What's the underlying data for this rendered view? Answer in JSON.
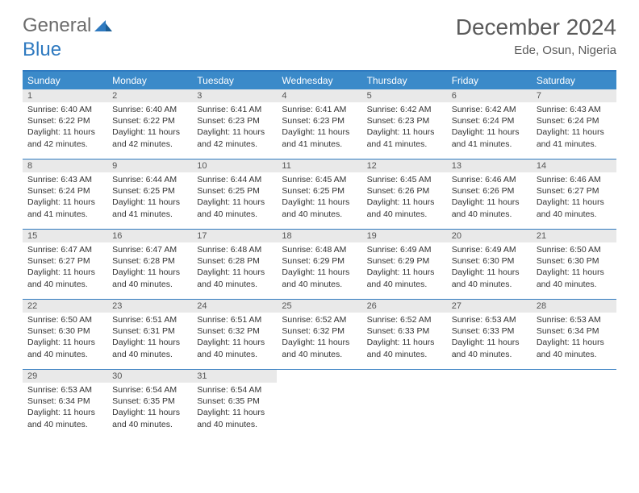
{
  "brand": {
    "first": "General",
    "second": "Blue",
    "tri_color": "#2f7ac0"
  },
  "title": "December 2024",
  "location": "Ede, Osun, Nigeria",
  "colors": {
    "header_bar": "#3b8ac9",
    "rule": "#2f7ac0",
    "daynum_bg": "#e9e9e9",
    "text": "#333333",
    "title_text": "#5a5a5a"
  },
  "days_of_week": [
    "Sunday",
    "Monday",
    "Tuesday",
    "Wednesday",
    "Thursday",
    "Friday",
    "Saturday"
  ],
  "weeks": [
    [
      {
        "n": "1",
        "sr": "6:40 AM",
        "ss": "6:22 PM",
        "dl": "11 hours and 42 minutes."
      },
      {
        "n": "2",
        "sr": "6:40 AM",
        "ss": "6:22 PM",
        "dl": "11 hours and 42 minutes."
      },
      {
        "n": "3",
        "sr": "6:41 AM",
        "ss": "6:23 PM",
        "dl": "11 hours and 42 minutes."
      },
      {
        "n": "4",
        "sr": "6:41 AM",
        "ss": "6:23 PM",
        "dl": "11 hours and 41 minutes."
      },
      {
        "n": "5",
        "sr": "6:42 AM",
        "ss": "6:23 PM",
        "dl": "11 hours and 41 minutes."
      },
      {
        "n": "6",
        "sr": "6:42 AM",
        "ss": "6:24 PM",
        "dl": "11 hours and 41 minutes."
      },
      {
        "n": "7",
        "sr": "6:43 AM",
        "ss": "6:24 PM",
        "dl": "11 hours and 41 minutes."
      }
    ],
    [
      {
        "n": "8",
        "sr": "6:43 AM",
        "ss": "6:24 PM",
        "dl": "11 hours and 41 minutes."
      },
      {
        "n": "9",
        "sr": "6:44 AM",
        "ss": "6:25 PM",
        "dl": "11 hours and 41 minutes."
      },
      {
        "n": "10",
        "sr": "6:44 AM",
        "ss": "6:25 PM",
        "dl": "11 hours and 40 minutes."
      },
      {
        "n": "11",
        "sr": "6:45 AM",
        "ss": "6:25 PM",
        "dl": "11 hours and 40 minutes."
      },
      {
        "n": "12",
        "sr": "6:45 AM",
        "ss": "6:26 PM",
        "dl": "11 hours and 40 minutes."
      },
      {
        "n": "13",
        "sr": "6:46 AM",
        "ss": "6:26 PM",
        "dl": "11 hours and 40 minutes."
      },
      {
        "n": "14",
        "sr": "6:46 AM",
        "ss": "6:27 PM",
        "dl": "11 hours and 40 minutes."
      }
    ],
    [
      {
        "n": "15",
        "sr": "6:47 AM",
        "ss": "6:27 PM",
        "dl": "11 hours and 40 minutes."
      },
      {
        "n": "16",
        "sr": "6:47 AM",
        "ss": "6:28 PM",
        "dl": "11 hours and 40 minutes."
      },
      {
        "n": "17",
        "sr": "6:48 AM",
        "ss": "6:28 PM",
        "dl": "11 hours and 40 minutes."
      },
      {
        "n": "18",
        "sr": "6:48 AM",
        "ss": "6:29 PM",
        "dl": "11 hours and 40 minutes."
      },
      {
        "n": "19",
        "sr": "6:49 AM",
        "ss": "6:29 PM",
        "dl": "11 hours and 40 minutes."
      },
      {
        "n": "20",
        "sr": "6:49 AM",
        "ss": "6:30 PM",
        "dl": "11 hours and 40 minutes."
      },
      {
        "n": "21",
        "sr": "6:50 AM",
        "ss": "6:30 PM",
        "dl": "11 hours and 40 minutes."
      }
    ],
    [
      {
        "n": "22",
        "sr": "6:50 AM",
        "ss": "6:30 PM",
        "dl": "11 hours and 40 minutes."
      },
      {
        "n": "23",
        "sr": "6:51 AM",
        "ss": "6:31 PM",
        "dl": "11 hours and 40 minutes."
      },
      {
        "n": "24",
        "sr": "6:51 AM",
        "ss": "6:32 PM",
        "dl": "11 hours and 40 minutes."
      },
      {
        "n": "25",
        "sr": "6:52 AM",
        "ss": "6:32 PM",
        "dl": "11 hours and 40 minutes."
      },
      {
        "n": "26",
        "sr": "6:52 AM",
        "ss": "6:33 PM",
        "dl": "11 hours and 40 minutes."
      },
      {
        "n": "27",
        "sr": "6:53 AM",
        "ss": "6:33 PM",
        "dl": "11 hours and 40 minutes."
      },
      {
        "n": "28",
        "sr": "6:53 AM",
        "ss": "6:34 PM",
        "dl": "11 hours and 40 minutes."
      }
    ],
    [
      {
        "n": "29",
        "sr": "6:53 AM",
        "ss": "6:34 PM",
        "dl": "11 hours and 40 minutes."
      },
      {
        "n": "30",
        "sr": "6:54 AM",
        "ss": "6:35 PM",
        "dl": "11 hours and 40 minutes."
      },
      {
        "n": "31",
        "sr": "6:54 AM",
        "ss": "6:35 PM",
        "dl": "11 hours and 40 minutes."
      },
      null,
      null,
      null,
      null
    ]
  ],
  "labels": {
    "sunrise_prefix": "Sunrise: ",
    "sunset_prefix": "Sunset: ",
    "daylight_prefix": "Daylight: "
  }
}
